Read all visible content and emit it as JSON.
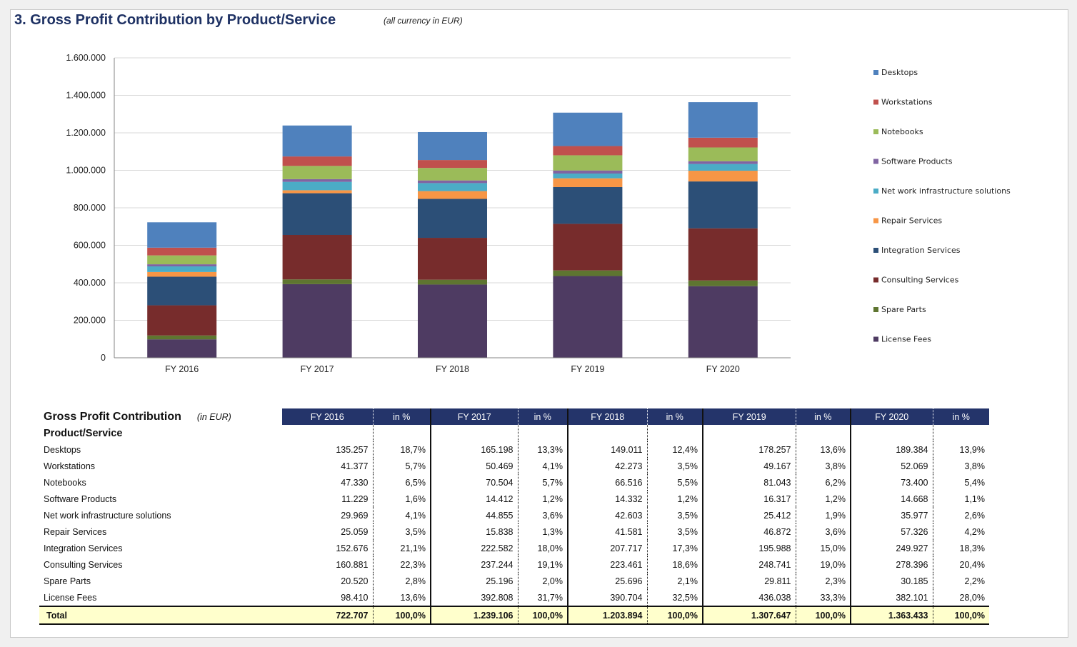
{
  "page": {
    "title": "3. Gross Profit Contribution by Product/Service",
    "subtitle": "(all currency in EUR)"
  },
  "chart_data": {
    "type": "bar",
    "stacked": true,
    "title": "",
    "xlabel": "",
    "ylabel": "",
    "categories": [
      "FY 2016",
      "FY 2017",
      "FY 2018",
      "FY 2019",
      "FY 2020"
    ],
    "ylim": [
      0,
      1600000
    ],
    "yticks": [
      0,
      200000,
      400000,
      600000,
      800000,
      1000000,
      1200000,
      1400000,
      1600000
    ],
    "ytick_labels": [
      "0",
      "200.000",
      "400.000",
      "600.000",
      "800.000",
      "1.000.000",
      "1.200.000",
      "1.400.000",
      "1.600.000"
    ],
    "grid": true,
    "legend_position": "right",
    "legend_order": [
      "Desktops",
      "Workstations",
      "Notebooks",
      "Software Products",
      "Net work infrastructure solutions",
      "Repair Services",
      "Integration Services",
      "Consulting Services",
      "Spare Parts",
      "License Fees"
    ],
    "series": [
      {
        "name": "License Fees",
        "color": "#4e3b62",
        "values": [
          98410,
          392808,
          390704,
          436038,
          382101
        ]
      },
      {
        "name": "Spare Parts",
        "color": "#5e7530",
        "values": [
          20520,
          25196,
          25696,
          29811,
          30185
        ]
      },
      {
        "name": "Consulting Services",
        "color": "#772c2c",
        "values": [
          160881,
          237244,
          223461,
          248741,
          278396
        ]
      },
      {
        "name": "Integration Services",
        "color": "#2c4f77",
        "values": [
          152676,
          222582,
          207717,
          195988,
          249927
        ]
      },
      {
        "name": "Repair Services",
        "color": "#f79646",
        "values": [
          25059,
          15838,
          41581,
          46872,
          57326
        ]
      },
      {
        "name": "Net work infrastructure solutions",
        "color": "#4bacc6",
        "values": [
          29969,
          44855,
          42603,
          25412,
          35977
        ]
      },
      {
        "name": "Software Products",
        "color": "#8064a2",
        "values": [
          11229,
          14412,
          14332,
          16317,
          14668
        ]
      },
      {
        "name": "Notebooks",
        "color": "#9bbb59",
        "values": [
          47330,
          70504,
          66516,
          81043,
          73400
        ]
      },
      {
        "name": "Workstations",
        "color": "#c0504d",
        "values": [
          41377,
          50469,
          42273,
          49167,
          52069
        ]
      },
      {
        "name": "Desktops",
        "color": "#4f81bd",
        "values": [
          135257,
          165198,
          149011,
          178257,
          189384
        ]
      }
    ]
  },
  "table": {
    "title": "Gross Profit Contribution",
    "unit": "(in EUR)",
    "row_header": "Product/Service",
    "columns": [
      {
        "year": "FY 2016",
        "pct": "in %"
      },
      {
        "year": "FY 2017",
        "pct": "in %"
      },
      {
        "year": "FY 2018",
        "pct": "in %"
      },
      {
        "year": "FY 2019",
        "pct": "in %"
      },
      {
        "year": "FY 2020",
        "pct": "in %"
      }
    ],
    "rows": [
      {
        "label": "Desktops",
        "cells": [
          [
            "135.257",
            "18,7%"
          ],
          [
            "165.198",
            "13,3%"
          ],
          [
            "149.011",
            "12,4%"
          ],
          [
            "178.257",
            "13,6%"
          ],
          [
            "189.384",
            "13,9%"
          ]
        ]
      },
      {
        "label": "Workstations",
        "cells": [
          [
            "41.377",
            "5,7%"
          ],
          [
            "50.469",
            "4,1%"
          ],
          [
            "42.273",
            "3,5%"
          ],
          [
            "49.167",
            "3,8%"
          ],
          [
            "52.069",
            "3,8%"
          ]
        ]
      },
      {
        "label": "Notebooks",
        "cells": [
          [
            "47.330",
            "6,5%"
          ],
          [
            "70.504",
            "5,7%"
          ],
          [
            "66.516",
            "5,5%"
          ],
          [
            "81.043",
            "6,2%"
          ],
          [
            "73.400",
            "5,4%"
          ]
        ]
      },
      {
        "label": "Software Products",
        "cells": [
          [
            "11.229",
            "1,6%"
          ],
          [
            "14.412",
            "1,2%"
          ],
          [
            "14.332",
            "1,2%"
          ],
          [
            "16.317",
            "1,2%"
          ],
          [
            "14.668",
            "1,1%"
          ]
        ]
      },
      {
        "label": "Net work infrastructure solutions",
        "cells": [
          [
            "29.969",
            "4,1%"
          ],
          [
            "44.855",
            "3,6%"
          ],
          [
            "42.603",
            "3,5%"
          ],
          [
            "25.412",
            "1,9%"
          ],
          [
            "35.977",
            "2,6%"
          ]
        ]
      },
      {
        "label": "Repair Services",
        "cells": [
          [
            "25.059",
            "3,5%"
          ],
          [
            "15.838",
            "1,3%"
          ],
          [
            "41.581",
            "3,5%"
          ],
          [
            "46.872",
            "3,6%"
          ],
          [
            "57.326",
            "4,2%"
          ]
        ]
      },
      {
        "label": "Integration Services",
        "cells": [
          [
            "152.676",
            "21,1%"
          ],
          [
            "222.582",
            "18,0%"
          ],
          [
            "207.717",
            "17,3%"
          ],
          [
            "195.988",
            "15,0%"
          ],
          [
            "249.927",
            "18,3%"
          ]
        ]
      },
      {
        "label": "Consulting Services",
        "cells": [
          [
            "160.881",
            "22,3%"
          ],
          [
            "237.244",
            "19,1%"
          ],
          [
            "223.461",
            "18,6%"
          ],
          [
            "248.741",
            "19,0%"
          ],
          [
            "278.396",
            "20,4%"
          ]
        ]
      },
      {
        "label": "Spare Parts",
        "cells": [
          [
            "20.520",
            "2,8%"
          ],
          [
            "25.196",
            "2,0%"
          ],
          [
            "25.696",
            "2,1%"
          ],
          [
            "29.811",
            "2,3%"
          ],
          [
            "30.185",
            "2,2%"
          ]
        ]
      },
      {
        "label": "License Fees",
        "cells": [
          [
            "98.410",
            "13,6%"
          ],
          [
            "392.808",
            "31,7%"
          ],
          [
            "390.704",
            "32,5%"
          ],
          [
            "436.038",
            "33,3%"
          ],
          [
            "382.101",
            "28,0%"
          ]
        ]
      }
    ],
    "total": {
      "label": "Total",
      "cells": [
        [
          "722.707",
          "100,0%"
        ],
        [
          "1.239.106",
          "100,0%"
        ],
        [
          "1.203.894",
          "100,0%"
        ],
        [
          "1.307.647",
          "100,0%"
        ],
        [
          "1.363.433",
          "100,0%"
        ]
      ]
    }
  }
}
